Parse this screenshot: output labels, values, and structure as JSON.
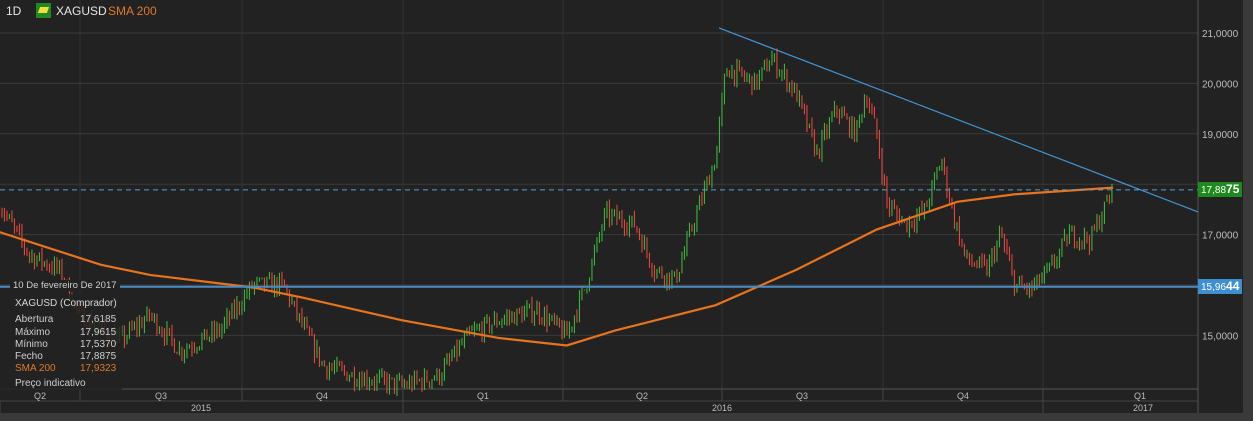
{
  "header": {
    "interval": "1D",
    "symbol": "XAGUSD",
    "indicator": "SMA 200",
    "symbol_icon": "gold-bar-icon"
  },
  "crosshair": {
    "date_label": "10 De fevereiro De 2017"
  },
  "info_panel": {
    "title": "XAGUSD (Comprador)",
    "rows": [
      {
        "label": "Abertura",
        "value": "17,6185"
      },
      {
        "label": "Máximo",
        "value": "17,9615"
      },
      {
        "label": "Mínimo",
        "value": "17,5370"
      },
      {
        "label": "Fecho",
        "value": "17,8875"
      },
      {
        "label": "SMA 200",
        "value": "17,9323"
      }
    ],
    "footer": "Preço indicativo"
  },
  "price_tags": {
    "last": {
      "main": "17,88",
      "big": "75",
      "color": "#1e8a1e"
    },
    "line": {
      "main": "15,96",
      "big": "44",
      "color": "#3d8fd1"
    }
  },
  "colors": {
    "up": "#3cb43c",
    "down": "#e2473c",
    "sma": "#e8731e",
    "trendline": "#3f95d0",
    "support": "#4a8cc4",
    "background": "#222222"
  },
  "chart_data": {
    "type": "candlestick",
    "symbol": "XAGUSD",
    "y_ticks": [
      "21,0000",
      "20,0000",
      "19,0000",
      "17,0000",
      "15,0000"
    ],
    "y_tick_values": [
      21,
      20,
      19,
      17,
      15
    ],
    "ylim": [
      13.9,
      21.6
    ],
    "x_quarter_labels": [
      "Q2",
      "Q3",
      "Q4",
      "Q1",
      "Q2",
      "Q3",
      "Q4",
      "Q1"
    ],
    "x_year_labels": [
      "2015",
      "2016",
      "2017"
    ],
    "grid": true,
    "close_path": [
      [
        "2015-05-16",
        17.6
      ],
      [
        "2015-06-02",
        16.6
      ],
      [
        "2015-06-19",
        16.3
      ],
      [
        "2015-07-01",
        15.4
      ],
      [
        "2015-07-24",
        14.9
      ],
      [
        "2015-08-10",
        15.4
      ],
      [
        "2015-08-27",
        14.7
      ],
      [
        "2015-09-19",
        15.1
      ],
      [
        "2015-10-08",
        16.0
      ],
      [
        "2015-10-25",
        16.0
      ],
      [
        "2015-11-05",
        15.2
      ],
      [
        "2015-11-17",
        14.4
      ],
      [
        "2015-12-04",
        14.2
      ],
      [
        "2016-01-01",
        14.0
      ],
      [
        "2016-01-22",
        14.2
      ],
      [
        "2016-02-08",
        15.0
      ],
      [
        "2016-02-25",
        15.3
      ],
      [
        "2016-03-18",
        15.5
      ],
      [
        "2016-04-04",
        15.0
      ],
      [
        "2016-04-15",
        16.0
      ],
      [
        "2016-04-26",
        17.4
      ],
      [
        "2016-05-13",
        17.2
      ],
      [
        "2016-05-24",
        16.3
      ],
      [
        "2016-06-05",
        16.1
      ],
      [
        "2016-06-16",
        17.3
      ],
      [
        "2016-06-28",
        18.5
      ],
      [
        "2016-07-04",
        20.3
      ],
      [
        "2016-07-21",
        20.0
      ],
      [
        "2016-07-30",
        20.5
      ],
      [
        "2016-08-13",
        19.8
      ],
      [
        "2016-08-25",
        18.6
      ],
      [
        "2016-09-05",
        19.5
      ],
      [
        "2016-09-16",
        19.0
      ],
      [
        "2016-09-22",
        19.8
      ],
      [
        "2016-09-28",
        19.0
      ],
      [
        "2016-10-04",
        17.6
      ],
      [
        "2016-10-15",
        17.2
      ],
      [
        "2016-10-26",
        17.5
      ],
      [
        "2016-11-04",
        18.5
      ],
      [
        "2016-11-10",
        17.5
      ],
      [
        "2016-11-18",
        16.5
      ],
      [
        "2016-11-30",
        16.3
      ],
      [
        "2016-12-08",
        17.0
      ],
      [
        "2016-12-16",
        16.0
      ],
      [
        "2016-12-25",
        15.9
      ],
      [
        "2017-01-05",
        16.3
      ],
      [
        "2017-01-16",
        17.0
      ],
      [
        "2017-01-28",
        16.9
      ],
      [
        "2017-02-10",
        17.8875
      ]
    ],
    "sma_200": [
      [
        "2015-05-16",
        17.05
      ],
      [
        "2015-07-13",
        16.4
      ],
      [
        "2015-08-10",
        16.2
      ],
      [
        "2015-10-08",
        15.95
      ],
      [
        "2015-11-05",
        15.75
      ],
      [
        "2016-01-01",
        15.3
      ],
      [
        "2016-02-25",
        14.95
      ],
      [
        "2016-04-04",
        14.8
      ],
      [
        "2016-05-02",
        15.1
      ],
      [
        "2016-06-28",
        15.6
      ],
      [
        "2016-08-13",
        16.3
      ],
      [
        "2016-09-28",
        17.1
      ],
      [
        "2016-11-13",
        17.65
      ],
      [
        "2016-12-16",
        17.8
      ],
      [
        "2017-02-10",
        17.9323
      ]
    ],
    "trendline": [
      [
        "2016-06-30",
        21.1
      ],
      [
        "2017-03-30",
        17.45
      ]
    ],
    "horizontal_line": 15.9644,
    "last_price": 17.8875
  }
}
